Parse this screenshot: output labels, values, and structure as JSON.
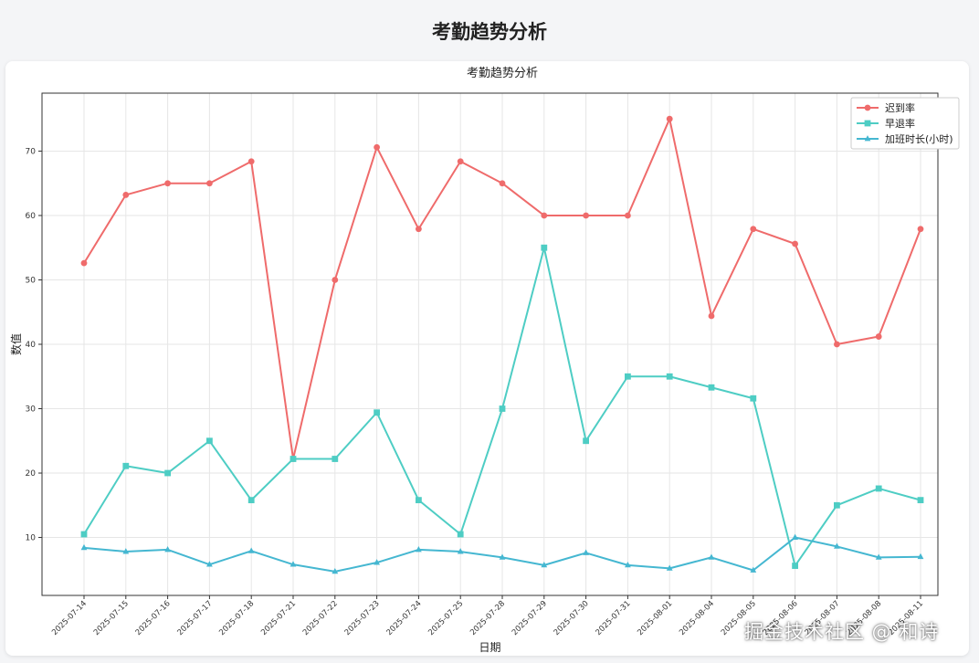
{
  "page": {
    "title": "考勤趋势分析"
  },
  "watermark": "掘金技术社区 @ 和诗",
  "chart_data": {
    "type": "line",
    "title": "考勤趋势分析",
    "xlabel": "日期",
    "ylabel": "数值",
    "ylim": [
      1,
      79
    ],
    "yticks": [
      10,
      20,
      30,
      40,
      50,
      60,
      70
    ],
    "grid": true,
    "legend_position": "top-right",
    "categories": [
      "2025-07-14",
      "2025-07-15",
      "2025-07-16",
      "2025-07-17",
      "2025-07-18",
      "2025-07-21",
      "2025-07-22",
      "2025-07-23",
      "2025-07-24",
      "2025-07-25",
      "2025-07-28",
      "2025-07-29",
      "2025-07-30",
      "2025-07-31",
      "2025-08-01",
      "2025-08-04",
      "2025-08-05",
      "2025-08-06",
      "2025-08-07",
      "2025-08-08",
      "2025-08-11"
    ],
    "series": [
      {
        "name": "迟到率",
        "color": "#ef6b6b",
        "marker": "circle",
        "values": [
          52.6,
          63.2,
          65.0,
          65.0,
          68.4,
          22.2,
          50.0,
          70.6,
          57.9,
          68.4,
          65.0,
          60.0,
          60.0,
          60.0,
          75.0,
          44.4,
          57.9,
          55.6,
          40.0,
          41.2,
          57.9
        ]
      },
      {
        "name": "早退率",
        "color": "#4ecdc4",
        "marker": "square",
        "values": [
          10.5,
          21.1,
          20.0,
          25.0,
          15.8,
          22.2,
          22.2,
          29.4,
          15.8,
          10.5,
          30.0,
          55.0,
          25.0,
          35.0,
          35.0,
          33.3,
          31.6,
          5.6,
          15.0,
          17.6,
          15.8
        ]
      },
      {
        "name": "加班时长(小时)",
        "color": "#45b7d1",
        "marker": "triangle",
        "values": [
          8.4,
          7.8,
          8.1,
          5.8,
          7.9,
          5.8,
          4.7,
          6.1,
          8.1,
          7.8,
          6.9,
          5.7,
          7.6,
          5.7,
          5.2,
          6.9,
          4.9,
          10.0,
          8.6,
          6.9,
          7.0
        ]
      }
    ]
  }
}
